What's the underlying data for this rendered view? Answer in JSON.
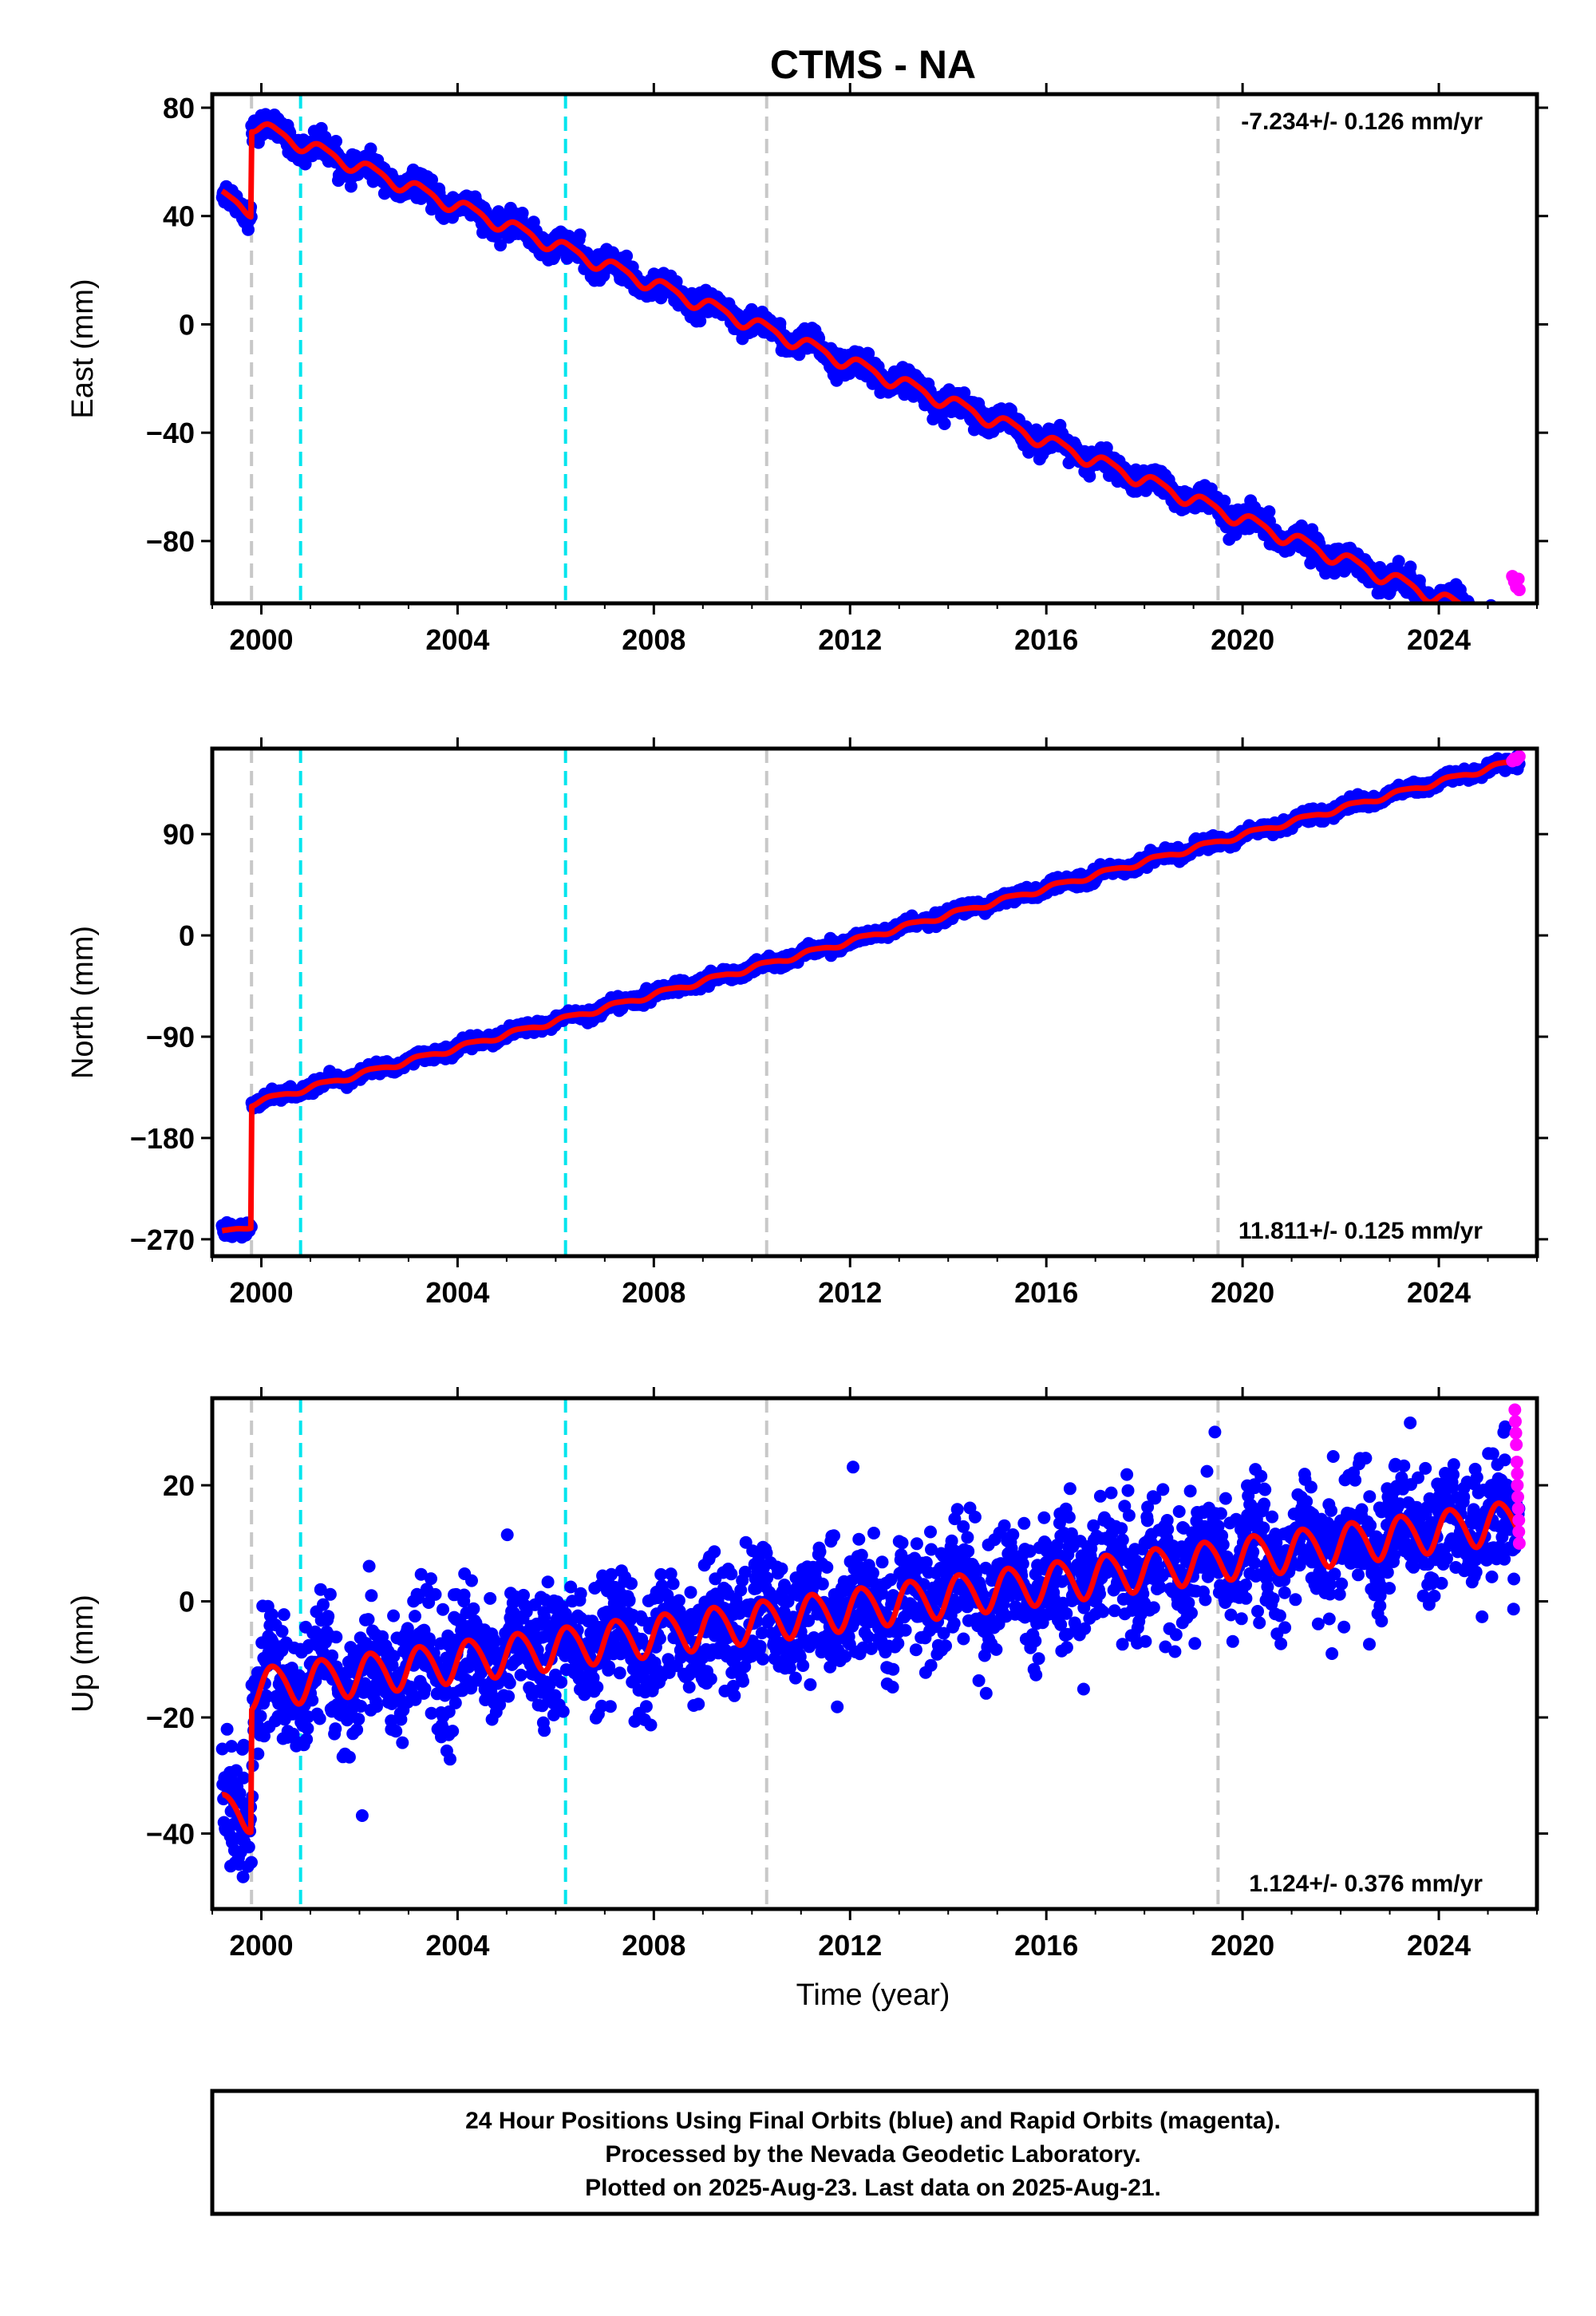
{
  "title": "CTMS - NA",
  "xlabel": "Time (year)",
  "colors": {
    "final_orbits": "#0000ff",
    "rapid_orbits": "#ff00ff",
    "model": "#ff0000",
    "equipment_change": "#c8c8c8",
    "earthquake": "#00e5ee",
    "frame": "#000000"
  },
  "chart_data": [
    {
      "type": "scatter",
      "component": "east",
      "ylabel": "East (mm)",
      "xlim": [
        1999.0,
        2026.0
      ],
      "ylim": [
        -103,
        85
      ],
      "xticks": [
        2000,
        2004,
        2008,
        2012,
        2016,
        2020,
        2024
      ],
      "yticks": [
        -80,
        -40,
        0,
        40,
        80
      ],
      "rate_label": "-7.234+/- 0.126 mm/yr",
      "rate_label_position": "top-right",
      "data_start": 1999.2,
      "data_end": 2025.64,
      "equipment_change_lines": [
        1999.8,
        2010.3,
        2019.5
      ],
      "earthquake_lines": [
        2000.8,
        2006.2
      ],
      "model": {
        "offsets": [
          {
            "epoch": 1999.8,
            "step": 31.5
          }
        ],
        "velocity_mm_yr": -7.234,
        "annual_amplitude": 2.5,
        "semiannual_amplitude": 0.6,
        "anchor": [
          2000.0,
          73.0
        ]
      },
      "final_orbits_scatter": 2.2,
      "rapid_orbits_points": [
        [
          2025.5,
          -93
        ],
        [
          2025.54,
          -95
        ],
        [
          2025.58,
          -97
        ],
        [
          2025.62,
          -94
        ],
        [
          2025.64,
          -98
        ]
      ]
    },
    {
      "type": "scatter",
      "component": "north",
      "ylabel": "North (mm)",
      "xlim": [
        1999.0,
        2026.0
      ],
      "ylim": [
        -285,
        166
      ],
      "xticks": [
        2000,
        2004,
        2008,
        2012,
        2016,
        2020,
        2024
      ],
      "yticks": [
        -270,
        -180,
        -90,
        0,
        90
      ],
      "rate_label": "11.811+/- 0.125 mm/yr",
      "rate_label_position": "bottom-right",
      "data_start": 1999.2,
      "data_end": 2025.64,
      "equipment_change_lines": [
        1999.8,
        2010.3,
        2019.5
      ],
      "earthquake_lines": [
        2000.8,
        2006.2
      ],
      "model": {
        "offsets": [
          {
            "epoch": 1999.8,
            "step": 108
          }
        ],
        "velocity_mm_yr": 11.811,
        "annual_amplitude": 2.2,
        "semiannual_amplitude": 0.5,
        "anchor": [
          2012.0,
          -5.0
        ]
      },
      "final_orbits_scatter": 2.5,
      "rapid_orbits_points": [
        [
          2025.5,
          155
        ],
        [
          2025.54,
          157
        ],
        [
          2025.58,
          156
        ],
        [
          2025.62,
          158
        ],
        [
          2025.64,
          159
        ]
      ]
    },
    {
      "type": "scatter",
      "component": "up",
      "ylabel": "Up (mm)",
      "xlim": [
        1999.0,
        2026.0
      ],
      "ylim": [
        -53,
        35
      ],
      "xticks": [
        2000,
        2004,
        2008,
        2012,
        2016,
        2020,
        2024
      ],
      "yticks": [
        -40,
        -20,
        0,
        20
      ],
      "rate_label": "1.124+/- 0.376 mm/yr",
      "rate_label_position": "bottom-right",
      "data_start": 1999.2,
      "data_end": 2025.64,
      "equipment_change_lines": [
        1999.8,
        2010.3,
        2019.5
      ],
      "earthquake_lines": [
        2000.8,
        2006.2
      ],
      "model": {
        "offsets": [
          {
            "epoch": 1999.8,
            "step": 21
          }
        ],
        "velocity_mm_yr": 1.124,
        "annual_amplitude": 3.5,
        "semiannual_amplitude": 0.4,
        "anchor": [
          2012.0,
          -1.0
        ]
      },
      "final_orbits_scatter": 5.0,
      "rapid_orbits_points": [
        [
          2025.55,
          33
        ],
        [
          2025.56,
          31
        ],
        [
          2025.57,
          29
        ],
        [
          2025.58,
          27
        ],
        [
          2025.59,
          24
        ],
        [
          2025.6,
          22
        ],
        [
          2025.6,
          20
        ],
        [
          2025.61,
          18
        ],
        [
          2025.62,
          16
        ],
        [
          2025.63,
          14
        ],
        [
          2025.63,
          12
        ],
        [
          2025.64,
          10
        ]
      ]
    }
  ],
  "footer": {
    "line1": "24 Hour Positions Using Final Orbits (blue) and Rapid Orbits (magenta).",
    "line2": "Processed by the Nevada Geodetic Laboratory.",
    "line3": "Plotted on 2025-Aug-23. Last data on 2025-Aug-21."
  }
}
